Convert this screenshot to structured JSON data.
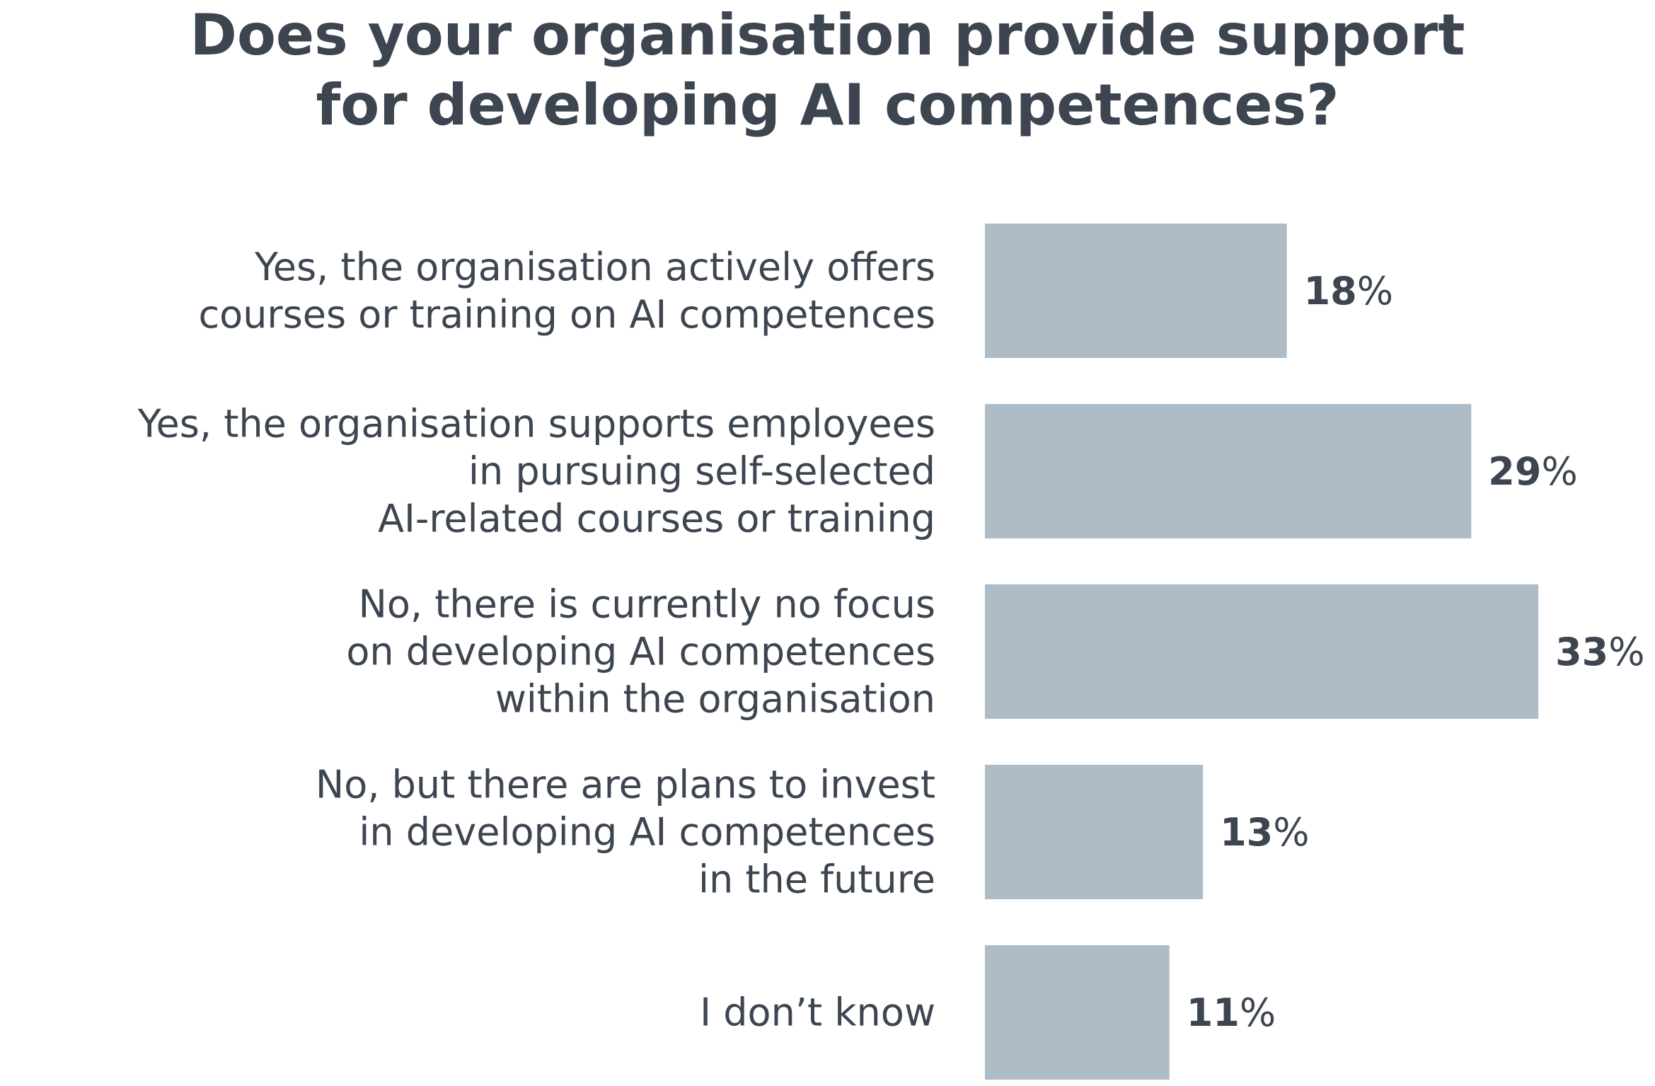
{
  "chart_data": {
    "type": "bar",
    "orientation": "horizontal",
    "title_lines": [
      "Does your organisation provide support",
      "for developing AI competences?"
    ],
    "categories": [
      [
        "Yes, the organisation actively offers",
        "courses or training on AI competences"
      ],
      [
        "Yes, the organisation supports employees",
        "in pursuing self-selected",
        "AI-related courses or training"
      ],
      [
        "No, there is currently no focus",
        "on developing AI competences",
        "within the organisation"
      ],
      [
        "No, but there are plans to invest",
        "in developing AI competences",
        "in the future"
      ],
      [
        "I don’t know"
      ]
    ],
    "values": [
      18,
      29,
      33,
      13,
      11
    ],
    "value_labels": [
      "18",
      "29",
      "33",
      "13",
      "11"
    ],
    "unit": "%",
    "bar_color": "#adbcc6",
    "text_color": "#3d4551",
    "grid": false,
    "legend": "none"
  }
}
